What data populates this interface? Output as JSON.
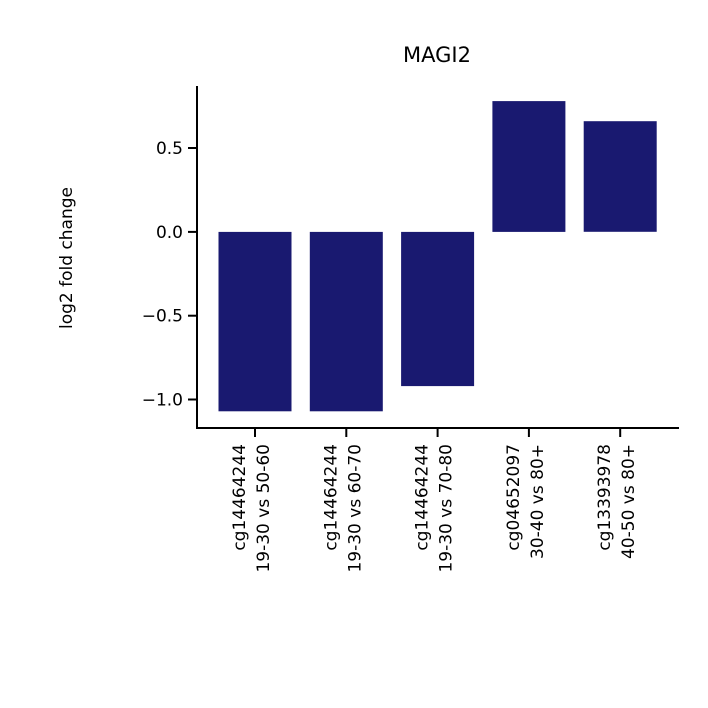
{
  "chart_data": {
    "type": "bar",
    "title": "MAGI2",
    "xlabel": "",
    "ylabel": "log2 fold change",
    "categories": [
      [
        "cg14464244",
        "19-30 vs 50-60"
      ],
      [
        "cg14464244",
        "19-30 vs 60-70"
      ],
      [
        "cg14464244",
        "19-30 vs 70-80"
      ],
      [
        "cg04652097",
        "30-40 vs 80+"
      ],
      [
        "cg13393978",
        "40-50 vs 80+"
      ]
    ],
    "values": [
      -1.07,
      -1.07,
      -0.92,
      0.78,
      0.66
    ],
    "ylim": [
      -1.17,
      0.87
    ],
    "yticks": [
      0.5,
      0.0,
      -0.5,
      -1.0
    ],
    "ytick_labels": [
      "0.5",
      "0.0",
      "−0.5",
      "−1.0"
    ],
    "bar_color": "#191970",
    "grid": false,
    "legend": "none"
  }
}
